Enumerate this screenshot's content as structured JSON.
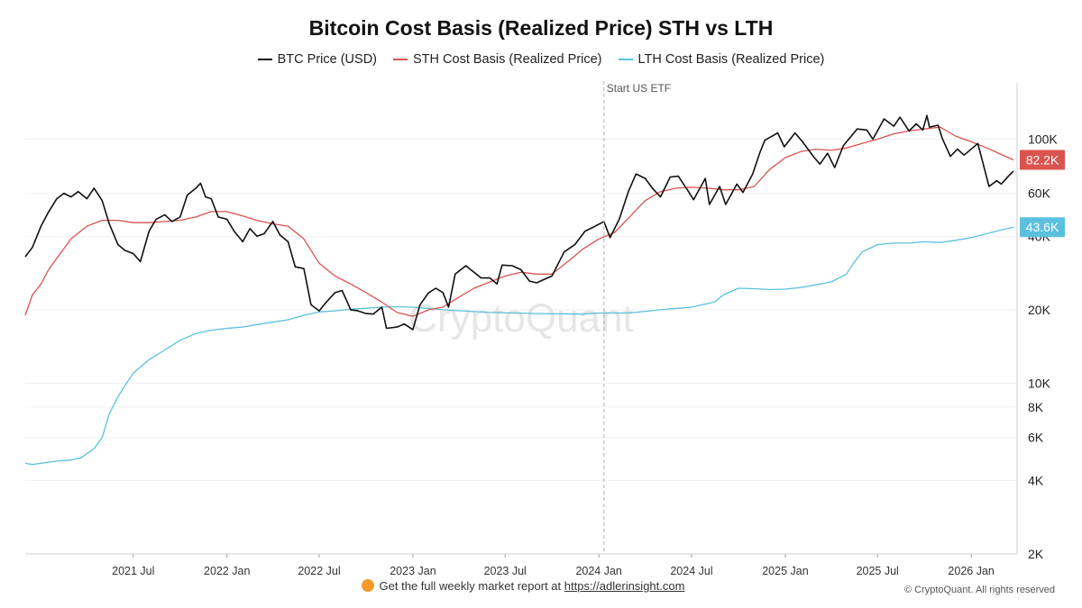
{
  "chart_data": {
    "type": "line",
    "title": "Bitcoin Cost Basis (Realized Price) STH vs LTH",
    "y_scale": "log",
    "ylim": [
      2000,
      170000
    ],
    "xlim": [
      "2020-12-01",
      "2026-04-01"
    ],
    "y_ticks": [
      {
        "value": 2000,
        "label": "2K"
      },
      {
        "value": 4000,
        "label": "4K"
      },
      {
        "value": 6000,
        "label": "6K"
      },
      {
        "value": 8000,
        "label": "8K"
      },
      {
        "value": 10000,
        "label": "10K"
      },
      {
        "value": 20000,
        "label": "20K"
      },
      {
        "value": 40000,
        "label": "40K"
      },
      {
        "value": 60000,
        "label": "60K"
      },
      {
        "value": 100000,
        "label": "100K"
      }
    ],
    "x_ticks": [
      {
        "date": "2021-07-01",
        "label": "2021 Jul"
      },
      {
        "date": "2022-01-01",
        "label": "2022 Jan"
      },
      {
        "date": "2022-07-01",
        "label": "2022 Jul"
      },
      {
        "date": "2023-01-01",
        "label": "2023 Jan"
      },
      {
        "date": "2023-07-01",
        "label": "2023 Jul"
      },
      {
        "date": "2024-01-01",
        "label": "2024 Jan"
      },
      {
        "date": "2024-07-01",
        "label": "2024 Jul"
      },
      {
        "date": "2025-01-01",
        "label": "2025 Jan"
      },
      {
        "date": "2025-07-01",
        "label": "2025 Jul"
      },
      {
        "date": "2026-01-01",
        "label": "2026 Jan"
      }
    ],
    "annotation": {
      "date": "2024-01-11",
      "label": "Start US ETF"
    },
    "watermark": "CryptoQuant",
    "series": [
      {
        "name": "BTC Price (USD)",
        "color": "#111111",
        "last_label": null,
        "points": [
          [
            "2020-12-01",
            33000
          ],
          [
            "2020-12-15",
            36000
          ],
          [
            "2021-01-01",
            44000
          ],
          [
            "2021-01-15",
            50000
          ],
          [
            "2021-02-01",
            57000
          ],
          [
            "2021-02-15",
            60000
          ],
          [
            "2021-03-01",
            58000
          ],
          [
            "2021-03-15",
            61000
          ],
          [
            "2021-04-01",
            57000
          ],
          [
            "2021-04-15",
            63000
          ],
          [
            "2021-05-01",
            56000
          ],
          [
            "2021-05-15",
            45000
          ],
          [
            "2021-06-01",
            37000
          ],
          [
            "2021-06-15",
            35000
          ],
          [
            "2021-07-01",
            34000
          ],
          [
            "2021-07-15",
            31500
          ],
          [
            "2021-08-01",
            42000
          ],
          [
            "2021-08-15",
            47000
          ],
          [
            "2021-09-01",
            49000
          ],
          [
            "2021-09-15",
            46000
          ],
          [
            "2021-10-01",
            48000
          ],
          [
            "2021-10-15",
            59000
          ],
          [
            "2021-11-01",
            63000
          ],
          [
            "2021-11-10",
            66000
          ],
          [
            "2021-11-20",
            58000
          ],
          [
            "2021-12-01",
            57000
          ],
          [
            "2021-12-15",
            48000
          ],
          [
            "2022-01-01",
            47000
          ],
          [
            "2022-01-15",
            42000
          ],
          [
            "2022-02-01",
            38000
          ],
          [
            "2022-02-15",
            43000
          ],
          [
            "2022-03-01",
            40000
          ],
          [
            "2022-03-15",
            41000
          ],
          [
            "2022-04-01",
            46000
          ],
          [
            "2022-04-15",
            40500
          ],
          [
            "2022-05-01",
            38000
          ],
          [
            "2022-05-15",
            30000
          ],
          [
            "2022-06-01",
            29500
          ],
          [
            "2022-06-15",
            21000
          ],
          [
            "2022-07-01",
            19800
          ],
          [
            "2022-07-15",
            21500
          ],
          [
            "2022-08-01",
            23500
          ],
          [
            "2022-08-15",
            24000
          ],
          [
            "2022-09-01",
            20000
          ],
          [
            "2022-09-15",
            19800
          ],
          [
            "2022-10-01",
            19300
          ],
          [
            "2022-10-15",
            19200
          ],
          [
            "2022-11-01",
            20500
          ],
          [
            "2022-11-10",
            16800
          ],
          [
            "2022-12-01",
            17000
          ],
          [
            "2022-12-15",
            17500
          ],
          [
            "2023-01-01",
            16600
          ],
          [
            "2023-01-15",
            21000
          ],
          [
            "2023-02-01",
            23500
          ],
          [
            "2023-02-15",
            24500
          ],
          [
            "2023-03-01",
            23500
          ],
          [
            "2023-03-12",
            20500
          ],
          [
            "2023-03-25",
            28000
          ],
          [
            "2023-04-15",
            30300
          ],
          [
            "2023-05-01",
            28500
          ],
          [
            "2023-05-15",
            27000
          ],
          [
            "2023-06-01",
            27000
          ],
          [
            "2023-06-15",
            25500
          ],
          [
            "2023-06-25",
            30500
          ],
          [
            "2023-07-15",
            30300
          ],
          [
            "2023-08-01",
            29200
          ],
          [
            "2023-08-18",
            26200
          ],
          [
            "2023-09-01",
            25800
          ],
          [
            "2023-09-15",
            26600
          ],
          [
            "2023-10-01",
            27500
          ],
          [
            "2023-10-25",
            34500
          ],
          [
            "2023-11-15",
            37000
          ],
          [
            "2023-12-05",
            42000
          ],
          [
            "2023-12-20",
            43500
          ],
          [
            "2024-01-11",
            46000
          ],
          [
            "2024-01-23",
            39500
          ],
          [
            "2024-02-10",
            47000
          ],
          [
            "2024-02-28",
            61000
          ],
          [
            "2024-03-14",
            72000
          ],
          [
            "2024-04-01",
            69000
          ],
          [
            "2024-04-15",
            63000
          ],
          [
            "2024-05-01",
            58000
          ],
          [
            "2024-05-20",
            70000
          ],
          [
            "2024-06-05",
            70500
          ],
          [
            "2024-06-25",
            61000
          ],
          [
            "2024-07-05",
            56500
          ],
          [
            "2024-07-28",
            69000
          ],
          [
            "2024-08-05",
            54000
          ],
          [
            "2024-08-25",
            64000
          ],
          [
            "2024-09-06",
            54000
          ],
          [
            "2024-09-28",
            65500
          ],
          [
            "2024-10-10",
            60500
          ],
          [
            "2024-10-29",
            72000
          ],
          [
            "2024-11-12",
            88000
          ],
          [
            "2024-11-22",
            99000
          ],
          [
            "2024-12-17",
            106000
          ],
          [
            "2024-12-30",
            93000
          ],
          [
            "2025-01-20",
            106000
          ],
          [
            "2025-02-03",
            98000
          ],
          [
            "2025-02-27",
            84000
          ],
          [
            "2025-03-10",
            79000
          ],
          [
            "2025-03-25",
            87500
          ],
          [
            "2025-04-08",
            76500
          ],
          [
            "2025-04-25",
            94000
          ],
          [
            "2025-05-22",
            110000
          ],
          [
            "2025-06-10",
            109000
          ],
          [
            "2025-06-22",
            100000
          ],
          [
            "2025-07-14",
            121000
          ],
          [
            "2025-08-02",
            113000
          ],
          [
            "2025-08-14",
            123000
          ],
          [
            "2025-09-01",
            108000
          ],
          [
            "2025-09-15",
            115500
          ],
          [
            "2025-09-28",
            109000
          ],
          [
            "2025-10-06",
            125000
          ],
          [
            "2025-10-11",
            112000
          ],
          [
            "2025-10-28",
            114000
          ],
          [
            "2025-11-05",
            101000
          ],
          [
            "2025-11-21",
            85000
          ],
          [
            "2025-12-05",
            91000
          ],
          [
            "2025-12-18",
            86000
          ],
          [
            "2026-01-14",
            96000
          ],
          [
            "2026-02-05",
            64000
          ],
          [
            "2026-02-20",
            67500
          ],
          [
            "2026-03-01",
            65500
          ],
          [
            "2026-03-15",
            70500
          ],
          [
            "2026-03-25",
            74000
          ]
        ]
      },
      {
        "name": "STH Cost Basis (Realized Price)",
        "color": "#d9534f",
        "last_label": "82.2K",
        "points": [
          [
            "2020-12-01",
            19000
          ],
          [
            "2020-12-15",
            23000
          ],
          [
            "2021-01-01",
            25500
          ],
          [
            "2021-01-15",
            29000
          ],
          [
            "2021-02-01",
            32500
          ],
          [
            "2021-03-01",
            39000
          ],
          [
            "2021-04-01",
            44000
          ],
          [
            "2021-05-01",
            46500
          ],
          [
            "2021-06-01",
            46500
          ],
          [
            "2021-07-01",
            45500
          ],
          [
            "2021-08-01",
            45500
          ],
          [
            "2021-09-01",
            46000
          ],
          [
            "2021-10-01",
            46500
          ],
          [
            "2021-11-01",
            48000
          ],
          [
            "2021-12-01",
            50500
          ],
          [
            "2022-01-01",
            50500
          ],
          [
            "2022-02-01",
            48500
          ],
          [
            "2022-03-01",
            46500
          ],
          [
            "2022-04-01",
            45000
          ],
          [
            "2022-05-01",
            44000
          ],
          [
            "2022-06-01",
            39000
          ],
          [
            "2022-07-01",
            31000
          ],
          [
            "2022-08-01",
            27500
          ],
          [
            "2022-09-01",
            25500
          ],
          [
            "2022-10-01",
            23500
          ],
          [
            "2022-11-01",
            21500
          ],
          [
            "2022-12-01",
            19500
          ],
          [
            "2023-01-01",
            18800
          ],
          [
            "2023-02-01",
            20000
          ],
          [
            "2023-03-01",
            20500
          ],
          [
            "2023-04-01",
            22500
          ],
          [
            "2023-05-01",
            24500
          ],
          [
            "2023-06-01",
            26000
          ],
          [
            "2023-07-01",
            27500
          ],
          [
            "2023-08-01",
            28500
          ],
          [
            "2023-09-01",
            28000
          ],
          [
            "2023-10-01",
            28000
          ],
          [
            "2023-11-01",
            31500
          ],
          [
            "2023-12-01",
            35500
          ],
          [
            "2024-01-01",
            39000
          ],
          [
            "2024-02-01",
            41500
          ],
          [
            "2024-03-01",
            48000
          ],
          [
            "2024-04-01",
            56000
          ],
          [
            "2024-05-01",
            61000
          ],
          [
            "2024-06-01",
            63000
          ],
          [
            "2024-07-01",
            63500
          ],
          [
            "2024-08-01",
            63000
          ],
          [
            "2024-09-01",
            62000
          ],
          [
            "2024-10-01",
            62000
          ],
          [
            "2024-11-01",
            64000
          ],
          [
            "2024-12-01",
            75000
          ],
          [
            "2025-01-01",
            84000
          ],
          [
            "2025-02-01",
            89000
          ],
          [
            "2025-03-01",
            91000
          ],
          [
            "2025-04-01",
            90000
          ],
          [
            "2025-05-01",
            92000
          ],
          [
            "2025-06-01",
            96000
          ],
          [
            "2025-07-01",
            100000
          ],
          [
            "2025-08-01",
            105000
          ],
          [
            "2025-09-01",
            108000
          ],
          [
            "2025-10-01",
            110000
          ],
          [
            "2025-11-01",
            112000
          ],
          [
            "2025-12-01",
            103000
          ],
          [
            "2026-01-01",
            97500
          ],
          [
            "2026-02-01",
            92000
          ],
          [
            "2026-03-01",
            86500
          ],
          [
            "2026-03-25",
            82200
          ]
        ]
      },
      {
        "name": "LTH Cost Basis (Realized Price)",
        "color": "#5bc0de",
        "last_label": "43.6K",
        "points": [
          [
            "2020-12-01",
            4700
          ],
          [
            "2020-12-15",
            4650
          ],
          [
            "2021-01-01",
            4700
          ],
          [
            "2021-02-01",
            4800
          ],
          [
            "2021-03-01",
            4850
          ],
          [
            "2021-03-20",
            4950
          ],
          [
            "2021-04-15",
            5400
          ],
          [
            "2021-05-01",
            6000
          ],
          [
            "2021-05-15",
            7500
          ],
          [
            "2021-06-01",
            8800
          ],
          [
            "2021-06-15",
            9800
          ],
          [
            "2021-07-01",
            11000
          ],
          [
            "2021-08-01",
            12500
          ],
          [
            "2021-09-01",
            13700
          ],
          [
            "2021-10-01",
            15000
          ],
          [
            "2021-11-01",
            16000
          ],
          [
            "2021-12-01",
            16500
          ],
          [
            "2022-01-01",
            16800
          ],
          [
            "2022-02-01",
            17000
          ],
          [
            "2022-03-01",
            17400
          ],
          [
            "2022-04-01",
            17800
          ],
          [
            "2022-05-01",
            18200
          ],
          [
            "2022-06-01",
            19000
          ],
          [
            "2022-07-01",
            19600
          ],
          [
            "2022-08-01",
            19800
          ],
          [
            "2022-09-01",
            20100
          ],
          [
            "2022-10-01",
            20300
          ],
          [
            "2022-11-01",
            20500
          ],
          [
            "2022-12-01",
            20600
          ],
          [
            "2023-01-01",
            20500
          ],
          [
            "2023-03-01",
            20000
          ],
          [
            "2023-06-01",
            19500
          ],
          [
            "2023-09-01",
            19300
          ],
          [
            "2023-12-01",
            19200
          ],
          [
            "2024-01-01",
            19400
          ],
          [
            "2024-03-01",
            19400
          ],
          [
            "2024-05-01",
            20000
          ],
          [
            "2024-07-01",
            20500
          ],
          [
            "2024-08-15",
            21500
          ],
          [
            "2024-09-01",
            23000
          ],
          [
            "2024-10-01",
            24500
          ],
          [
            "2024-11-01",
            24400
          ],
          [
            "2024-12-01",
            24200
          ],
          [
            "2025-01-01",
            24300
          ],
          [
            "2025-02-01",
            24700
          ],
          [
            "2025-03-01",
            25300
          ],
          [
            "2025-04-01",
            26000
          ],
          [
            "2025-05-01",
            28000
          ],
          [
            "2025-05-15",
            31000
          ],
          [
            "2025-06-01",
            34500
          ],
          [
            "2025-07-01",
            37000
          ],
          [
            "2025-08-01",
            37500
          ],
          [
            "2025-09-01",
            37500
          ],
          [
            "2025-10-01",
            38000
          ],
          [
            "2025-11-01",
            37700
          ],
          [
            "2025-12-01",
            38500
          ],
          [
            "2026-01-01",
            39500
          ],
          [
            "2026-02-01",
            41000
          ],
          [
            "2026-03-01",
            42500
          ],
          [
            "2026-03-25",
            43600
          ]
        ]
      }
    ]
  },
  "footer": {
    "promo_text": "Get the full weekly market report at",
    "promo_link": "https://adlerinsight.com",
    "copyright": "© CryptoQuant. All rights reserved"
  }
}
